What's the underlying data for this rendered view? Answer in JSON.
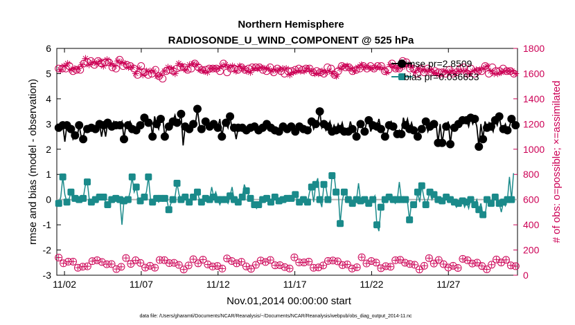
{
  "chart_data": {
    "type": "line",
    "title": "Northern Hemisphere",
    "subtitle": "RADIOSONDE_U_WIND_COMPONENT @ 525 hPa",
    "xlabel": "Nov.01,2014 00:00:00 start",
    "ylabel_left": "rmse and bias (model - observation)",
    "ylabel_right": "# of obs: o=possible; ×=assimilated",
    "footnote": "data file: /Users/gharamti/Documents/NCAR/Reanalysis/~/Documents/NCAR/Reanalysis/webpub/obs_diag_output_2014-11.nc",
    "x_range_days": [
      0.5,
      30.5
    ],
    "ylim_left": [
      -3,
      6
    ],
    "ylim_right": [
      0,
      1800
    ],
    "x_ticks": [
      {
        "day": 1,
        "label": "11/02"
      },
      {
        "day": 6,
        "label": "11/07"
      },
      {
        "day": 11,
        "label": "11/12"
      },
      {
        "day": 16,
        "label": "11/17"
      },
      {
        "day": 21,
        "label": "11/22"
      },
      {
        "day": 26,
        "label": "11/27"
      }
    ],
    "y_ticks_left": [
      -3,
      -2,
      -1,
      0,
      1,
      2,
      3,
      4,
      5,
      6
    ],
    "y_ticks_right": [
      0,
      200,
      400,
      600,
      800,
      1000,
      1200,
      1400,
      1600,
      1800
    ],
    "zero_line": 0,
    "colors": {
      "rmse": "#000000",
      "bias": "#1a8a8a",
      "obs": "#cc0055",
      "zero": "#b0b0b0"
    },
    "legend": {
      "position": "top-right",
      "entries": [
        "rmse pr=2.8509",
        "bias pr=0.036653"
      ]
    },
    "series": [
      {
        "name": "rmse",
        "values": [
          2.85,
          3.0,
          2.95,
          2.3,
          2.95,
          2.9,
          2.8,
          2.4,
          2.55,
          2.45,
          2.95,
          2.5,
          2.4,
          2.9,
          2.8,
          2.9,
          2.85,
          2.9,
          2.8,
          2.95,
          3.0,
          2.5,
          2.95,
          2.5,
          3.05,
          3.0,
          2.9,
          3.1,
          2.95,
          2.9,
          2.95,
          3.1,
          2.4,
          3.0,
          2.95,
          3.1,
          2.8,
          2.8,
          2.75,
          3.05,
          2.95,
          2.9,
          3.25,
          3.2,
          3.05,
          3.15,
          2.5,
          3.3,
          3.0,
          2.8,
          3.2,
          3.25,
          2.5,
          2.85,
          2.9,
          2.85,
          3.1,
          3.35,
          3.05,
          3.1,
          3.4,
          2.15,
          2.9,
          2.75,
          2.8,
          2.9,
          3.0,
          3.0,
          3.6,
          2.95,
          2.8,
          2.7,
          3.1,
          2.9,
          2.9,
          2.8,
          3.0,
          3.1,
          2.85,
          3.2,
          2.5,
          3.0,
          3.05,
          2.85,
          3.3,
          2.8,
          2.85,
          2.4,
          2.85,
          2.75,
          2.85,
          2.95,
          2.75,
          2.9,
          2.85,
          2.8,
          2.9,
          2.9,
          2.75,
          2.8,
          2.85,
          2.95,
          3.0,
          2.9,
          2.85,
          2.8,
          2.75,
          2.7,
          2.7,
          2.75,
          2.9,
          3.0,
          2.8,
          2.7,
          2.9,
          2.85,
          2.7,
          2.75,
          2.9,
          3.0,
          2.8,
          2.7,
          2.75,
          2.8,
          3.1,
          2.8,
          3.0,
          3.05,
          3.5,
          2.85,
          3.0,
          2.75,
          2.9,
          3.1,
          2.7,
          2.95,
          2.75,
          3.0,
          2.8,
          3.05,
          2.7,
          2.65,
          2.7,
          3.1,
          2.8,
          2.85,
          2.5,
          2.95,
          3.0,
          2.85,
          2.7,
          3.1,
          3.15,
          2.7,
          2.95,
          3.0,
          2.9,
          3.2,
          2.8,
          2.7,
          2.5,
          2.6,
          2.95,
          3.1,
          2.9,
          2.8,
          2.6,
          2.75,
          2.6,
          3.25,
          2.95,
          3.2,
          2.8,
          3.05,
          2.75,
          2.6,
          2.5,
          2.85,
          2.8,
          3.0,
          3.1,
          2.7,
          2.9,
          2.95,
          3.0,
          3.05,
          2.25,
          3.0,
          2.25,
          2.8,
          2.9,
          3.1,
          2.2,
          2.9,
          2.85,
          2.95,
          3.0,
          3.05,
          3.15,
          3.2,
          3.15,
          2.9,
          3.25,
          3.0,
          3.2,
          2.9,
          2.1,
          3.0,
          2.4,
          3.1,
          2.85,
          3.05,
          2.9,
          2.7,
          3.15,
          2.95,
          3.3,
          2.85,
          2.8,
          3.0,
          2.75,
          2.9,
          3.2,
          3.3,
          2.95
        ]
      },
      {
        "name": "bias",
        "values": [
          -0.15,
          0.1,
          0.9,
          0.2,
          -0.1,
          0.0,
          0.3,
          -0.05,
          0.05,
          0.0,
          0.0,
          -0.1,
          0.05,
          0.55,
          0.7,
          0.0,
          -0.1,
          0.1,
          0.0,
          0.05,
          0.1,
          0.0,
          0.1,
          -0.1,
          -0.2,
          -0.1,
          0.0,
          0.0,
          0.05,
          -0.05,
          0.0,
          -1.0,
          -0.05,
          0.1,
          0.0,
          0.3,
          0.9,
          0.3,
          0.5,
          0.0,
          -0.05,
          0.2,
          0.1,
          0.3,
          0.9,
          0.0,
          -0.1,
          0.1,
          0.05,
          -0.1,
          0.05,
          -0.05,
          0.05,
          0.0,
          -0.4,
          -0.15,
          0.0,
          0.1,
          0.65,
          0.2,
          0.0,
          -0.05,
          0.1,
          0.0,
          -0.1,
          -0.05,
          0.1,
          0.05,
          0.3,
          0.0,
          -0.1,
          -0.15,
          0.05,
          0.1,
          0.0,
          0.5,
          0.1,
          0.3,
          0.0,
          -0.2,
          0.0,
          0.1,
          0.0,
          -0.15,
          0.15,
          0.5,
          0.0,
          0.0,
          -0.1,
          0.0,
          0.1,
          0.6,
          0.35,
          0.2,
          0.05,
          -0.15,
          -0.2,
          -0.35,
          -0.2,
          0.1,
          0.0,
          0.0,
          0.05,
          0.0,
          -0.1,
          0.0,
          0.1,
          0.0,
          -0.05,
          0.0,
          0.0,
          -0.05,
          0.05,
          0.0,
          0.05,
          -0.05,
          0.2,
          0.0,
          -0.1,
          0.05,
          0.0,
          0.0,
          -0.1,
          0.3,
          0.5,
          -0.1,
          0.6,
          0.85,
          0.0,
          -0.3,
          0.6,
          0.5,
          0.0,
          -0.1,
          0.95,
          1.0,
          0.3,
          0.35,
          -0.95,
          -0.05,
          0.3,
          0.25,
          0.0,
          0.0,
          -0.15,
          -0.2,
          0.0,
          0.65,
          -0.05,
          0.0,
          0.0,
          0.1,
          -0.15,
          -0.2,
          0.0,
          0.15,
          -1.0,
          -1.25,
          -0.3,
          -0.2,
          0.0,
          -0.1,
          0.1,
          0.0,
          0.0,
          -0.15,
          0.0,
          0.7,
          0.0,
          0.0,
          0.0,
          -0.1,
          -0.8,
          -0.1,
          -0.2,
          -0.3,
          0.3,
          -0.1,
          0.55,
          0.1,
          -0.2,
          0.0,
          0.3,
          0.0,
          0.2,
          0.05,
          0.0,
          0.05,
          -0.05,
          0.0,
          0.1,
          0.0,
          0.0,
          0.0,
          -0.1,
          -0.3,
          -0.15,
          -0.15,
          -0.05,
          -0.3,
          -0.1,
          -0.35,
          0.0,
          0.0,
          -0.2,
          0.0,
          -0.4,
          -0.15,
          -0.6,
          -0.7,
          0.0,
          0.05,
          -0.15,
          -0.1,
          0.1,
          0.0,
          -0.15,
          -0.5,
          -0.1,
          -0.25,
          0.0,
          0.9,
          0.0,
          1.05
        ]
      },
      {
        "name": "obs_possible",
        "values": [
          1640,
          1630,
          1640,
          1660,
          1640,
          1680,
          1660,
          1630,
          1620,
          1640,
          1630,
          1640,
          1630,
          1670,
          1680,
          1720,
          1690,
          1670,
          1700,
          1690,
          1670,
          1680,
          1700,
          1700,
          1680,
          1660,
          1690,
          1710,
          1690,
          1680,
          1650,
          1660,
          1640,
          1700,
          1710,
          1690,
          1660,
          1680,
          1670,
          1650,
          1660,
          1650,
          1640,
          1600,
          1590,
          1640,
          1660,
          1590,
          1610,
          1620,
          1590,
          1620,
          1600,
          1620,
          1630,
          1580,
          1580,
          1590,
          1560,
          1620,
          1620,
          1650,
          1630,
          1640,
          1620,
          1600,
          1640,
          1680,
          1650,
          1660,
          1650,
          1630,
          1630,
          1670,
          1640,
          1680,
          1680,
          1670,
          1650,
          1630,
          1630,
          1620,
          1630,
          1610,
          1640,
          1640,
          1640,
          1640,
          1640,
          1640,
          1620,
          1660,
          1680,
          1670,
          1610,
          1650,
          1640,
          1660,
          1640,
          1620,
          1630,
          1660,
          1650,
          1640,
          1630,
          1620,
          1640,
          1610,
          1650,
          1640,
          1650,
          1640,
          1650,
          1650,
          1630,
          1640,
          1620,
          1640,
          1650,
          1620,
          1610,
          1630,
          1640,
          1630,
          1620,
          1640,
          1600,
          1640,
          1620,
          1590,
          1620,
          1610,
          1630,
          1620,
          1640,
          1620,
          1630,
          1620,
          1640,
          1640,
          1640,
          1620,
          1610,
          1600,
          1620,
          1600,
          1610,
          1620,
          1600,
          1610,
          1650,
          1620,
          1640,
          1600,
          1590,
          1580,
          1620,
          1640,
          1660,
          1660,
          1650,
          1660,
          1650,
          1640,
          1620,
          1620,
          1630,
          1650,
          1640,
          1670,
          1660,
          1650,
          1640,
          1650,
          1660,
          1640,
          1640,
          1650,
          1660,
          1650,
          1660,
          1640,
          1620,
          1610,
          1630,
          1670,
          1680,
          1650,
          1640,
          1640,
          1640,
          1650,
          1700,
          1660,
          1690,
          1670,
          1640,
          1650,
          1640,
          1610,
          1600,
          1640,
          1640,
          1630,
          1610,
          1620,
          1640,
          1630,
          1610,
          1610,
          1620,
          1600,
          1610,
          1590,
          1610,
          1620,
          1600,
          1610,
          1630,
          1620,
          1600,
          1600,
          1610,
          1620,
          1640,
          1620,
          1650,
          1620,
          1600,
          1600,
          1640,
          1620,
          1600,
          1630,
          1620,
          1630,
          1620,
          1640,
          1660,
          1660,
          1600,
          1620,
          1650,
          1600,
          1620,
          1600,
          1620,
          1610,
          1640,
          1620,
          1620,
          1620,
          1620,
          1620,
          1600,
          1600
        ],
        "sample": "every-third-point"
      },
      {
        "name": "obs_assimilated_flag",
        "values": []
      }
    ]
  }
}
